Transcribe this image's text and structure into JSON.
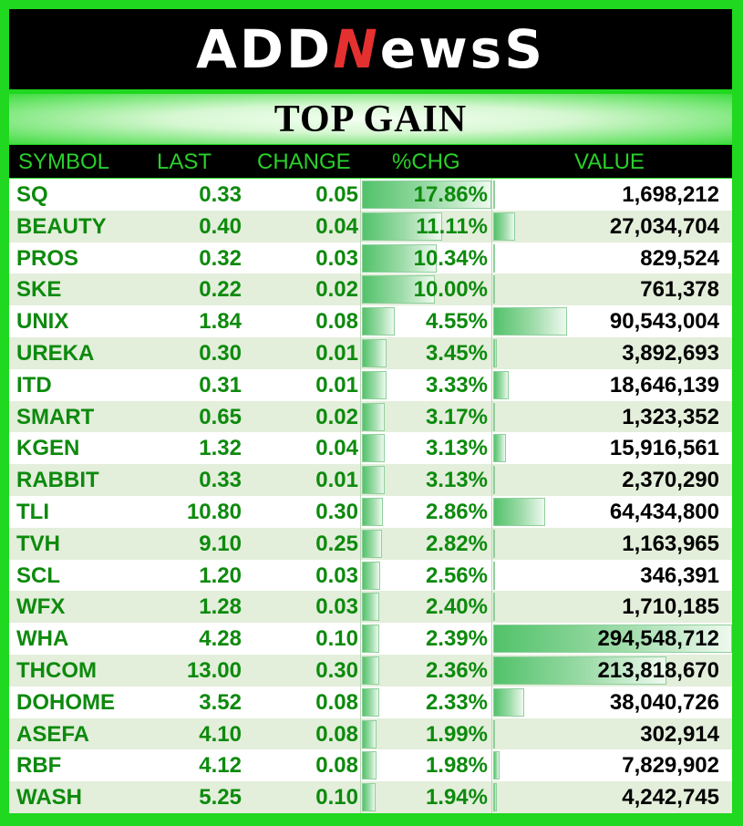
{
  "brand": {
    "logo_pre": "ADD",
    "logo_n": "N",
    "logo_post": "ewsS"
  },
  "title": "TOP GAIN",
  "columns": {
    "symbol": "SYMBOL",
    "last": "LAST",
    "change": "CHANGE",
    "pctchg": "%CHG",
    "value": "VALUE"
  },
  "colors": {
    "frame": "#1fd81f",
    "header_bg": "#000000",
    "header_text": "#2ad02a",
    "row_text": "#0d8a0d",
    "row_alt": "#e3eedb"
  },
  "rows": [
    {
      "symbol": "SQ",
      "last": "0.33",
      "change": "0.05",
      "pctchg": "17.86%",
      "pct": 17.86,
      "value": "1,698,212",
      "val": 1698212
    },
    {
      "symbol": "BEAUTY",
      "last": "0.40",
      "change": "0.04",
      "pctchg": "11.11%",
      "pct": 11.11,
      "value": "27,034,704",
      "val": 27034704
    },
    {
      "symbol": "PROS",
      "last": "0.32",
      "change": "0.03",
      "pctchg": "10.34%",
      "pct": 10.34,
      "value": "829,524",
      "val": 829524
    },
    {
      "symbol": "SKE",
      "last": "0.22",
      "change": "0.02",
      "pctchg": "10.00%",
      "pct": 10.0,
      "value": "761,378",
      "val": 761378
    },
    {
      "symbol": "UNIX",
      "last": "1.84",
      "change": "0.08",
      "pctchg": "4.55%",
      "pct": 4.55,
      "value": "90,543,004",
      "val": 90543004
    },
    {
      "symbol": "UREKA",
      "last": "0.30",
      "change": "0.01",
      "pctchg": "3.45%",
      "pct": 3.45,
      "value": "3,892,693",
      "val": 3892693
    },
    {
      "symbol": "ITD",
      "last": "0.31",
      "change": "0.01",
      "pctchg": "3.33%",
      "pct": 3.33,
      "value": "18,646,139",
      "val": 18646139
    },
    {
      "symbol": "SMART",
      "last": "0.65",
      "change": "0.02",
      "pctchg": "3.17%",
      "pct": 3.17,
      "value": "1,323,352",
      "val": 1323352
    },
    {
      "symbol": "KGEN",
      "last": "1.32",
      "change": "0.04",
      "pctchg": "3.13%",
      "pct": 3.13,
      "value": "15,916,561",
      "val": 15916561
    },
    {
      "symbol": "RABBIT",
      "last": "0.33",
      "change": "0.01",
      "pctchg": "3.13%",
      "pct": 3.13,
      "value": "2,370,290",
      "val": 2370290
    },
    {
      "symbol": "TLI",
      "last": "10.80",
      "change": "0.30",
      "pctchg": "2.86%",
      "pct": 2.86,
      "value": "64,434,800",
      "val": 64434800
    },
    {
      "symbol": "TVH",
      "last": "9.10",
      "change": "0.25",
      "pctchg": "2.82%",
      "pct": 2.82,
      "value": "1,163,965",
      "val": 1163965
    },
    {
      "symbol": "SCL",
      "last": "1.20",
      "change": "0.03",
      "pctchg": "2.56%",
      "pct": 2.56,
      "value": "346,391",
      "val": 346391
    },
    {
      "symbol": "WFX",
      "last": "1.28",
      "change": "0.03",
      "pctchg": "2.40%",
      "pct": 2.4,
      "value": "1,710,185",
      "val": 1710185
    },
    {
      "symbol": "WHA",
      "last": "4.28",
      "change": "0.10",
      "pctchg": "2.39%",
      "pct": 2.39,
      "value": "294,548,712",
      "val": 294548712
    },
    {
      "symbol": "THCOM",
      "last": "13.00",
      "change": "0.30",
      "pctchg": "2.36%",
      "pct": 2.36,
      "value": "213,818,670",
      "val": 213818670
    },
    {
      "symbol": "DOHOME",
      "last": "3.52",
      "change": "0.08",
      "pctchg": "2.33%",
      "pct": 2.33,
      "value": "38,040,726",
      "val": 38040726
    },
    {
      "symbol": "ASEFA",
      "last": "4.10",
      "change": "0.08",
      "pctchg": "1.99%",
      "pct": 1.99,
      "value": "302,914",
      "val": 302914
    },
    {
      "symbol": "RBF",
      "last": "4.12",
      "change": "0.08",
      "pctchg": "1.98%",
      "pct": 1.98,
      "value": "7,829,902",
      "val": 7829902
    },
    {
      "symbol": "WASH",
      "last": "5.25",
      "change": "0.10",
      "pctchg": "1.94%",
      "pct": 1.94,
      "value": "4,242,745",
      "val": 4242745
    }
  ]
}
